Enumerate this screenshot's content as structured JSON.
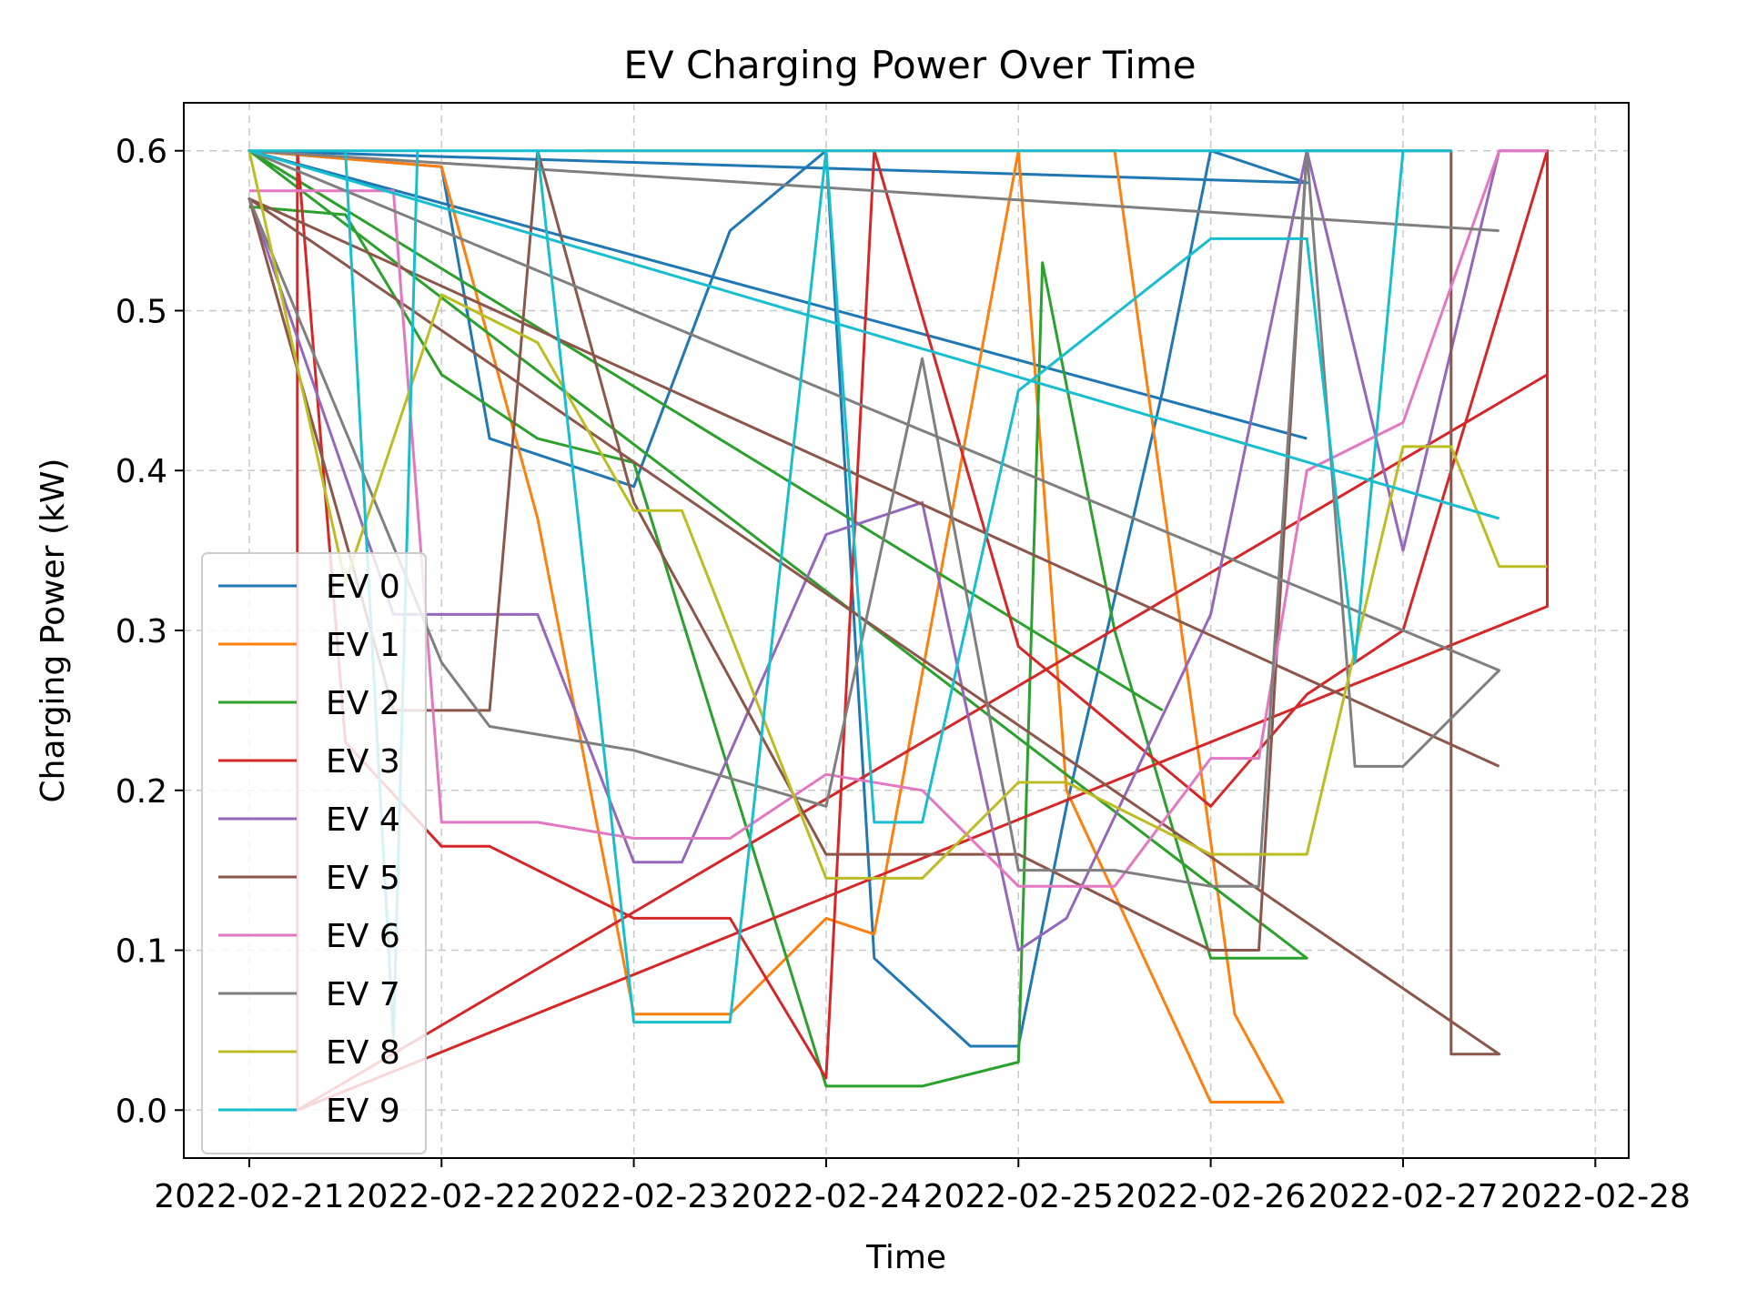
{
  "chart_data": {
    "type": "line",
    "title": "EV Charging Power Over Time",
    "xlabel": "Time",
    "ylabel": "Charging Power (kW)",
    "x_axis": "date",
    "xlim": [
      "2022-02-20T15:50",
      "2022-02-28T04:10"
    ],
    "ylim": [
      -0.03,
      0.63
    ],
    "x_ticks": [
      "2022-02-21T00:00",
      "2022-02-22T00:00",
      "2022-02-23T00:00",
      "2022-02-24T00:00",
      "2022-02-25T00:00",
      "2022-02-26T00:00",
      "2022-02-27T00:00",
      "2022-02-28T00:00"
    ],
    "x_tick_labels": [
      "2022-02-21",
      "2022-02-22",
      "2022-02-23",
      "2022-02-24",
      "2022-02-25",
      "2022-02-26",
      "2022-02-27",
      "2022-02-28"
    ],
    "y_ticks": [
      0.0,
      0.1,
      0.2,
      0.3,
      0.4,
      0.5,
      0.6
    ],
    "y_tick_labels": [
      "0.0",
      "0.1",
      "0.2",
      "0.3",
      "0.4",
      "0.5",
      "0.6"
    ],
    "grid": true,
    "legend_position": "lower-left",
    "series": [
      {
        "name": "EV 0",
        "color": "#1f77b4",
        "points": [
          [
            "2022-02-21T00:00",
            0.6
          ],
          [
            "2022-02-22T00:00",
            0.59
          ],
          [
            "2022-02-22T06:00",
            0.42
          ],
          [
            "2022-02-22T12:00",
            0.41
          ],
          [
            "2022-02-23T00:00",
            0.39
          ],
          [
            "2022-02-23T12:00",
            0.55
          ],
          [
            "2022-02-24T00:00",
            0.6
          ],
          [
            "2022-02-24T06:00",
            0.095
          ],
          [
            "2022-02-24T18:00",
            0.04
          ],
          [
            "2022-02-25T00:00",
            0.04
          ],
          [
            "2022-02-25T06:00",
            0.19
          ],
          [
            "2022-02-25T18:00",
            0.45
          ],
          [
            "2022-02-26T00:00",
            0.6
          ],
          [
            "2022-02-26T12:00",
            0.58
          ],
          [
            "2022-02-21T00:00",
            0.6
          ],
          [
            "2022-02-26T12:00",
            0.42
          ]
        ]
      },
      {
        "name": "EV 1",
        "color": "#ff7f0e",
        "points": [
          [
            "2022-02-21T00:00",
            0.6
          ],
          [
            "2022-02-22T00:00",
            0.59
          ],
          [
            "2022-02-22T12:00",
            0.37
          ],
          [
            "2022-02-23T00:00",
            0.06
          ],
          [
            "2022-02-23T12:00",
            0.06
          ],
          [
            "2022-02-24T00:00",
            0.12
          ],
          [
            "2022-02-24T06:00",
            0.11
          ],
          [
            "2022-02-25T00:00",
            0.6
          ],
          [
            "2022-02-25T06:00",
            0.2
          ],
          [
            "2022-02-26T00:00",
            0.005
          ],
          [
            "2022-02-26T09:00",
            0.005
          ],
          [
            "2022-02-26T03:00",
            0.06
          ],
          [
            "2022-02-25T12:00",
            0.6
          ],
          [
            "2022-02-22T18:00",
            0.6
          ]
        ]
      },
      {
        "name": "EV 2",
        "color": "#2ca02c",
        "points": [
          [
            "2022-02-21T00:00",
            0.565
          ],
          [
            "2022-02-21T12:00",
            0.56
          ],
          [
            "2022-02-22T00:00",
            0.46
          ],
          [
            "2022-02-22T12:00",
            0.42
          ],
          [
            "2022-02-23T00:00",
            0.405
          ],
          [
            "2022-02-24T00:00",
            0.015
          ],
          [
            "2022-02-24T12:00",
            0.015
          ],
          [
            "2022-02-25T00:00",
            0.03
          ],
          [
            "2022-02-25T03:00",
            0.53
          ],
          [
            "2022-02-25T12:00",
            0.3
          ],
          [
            "2022-02-26T00:00",
            0.095
          ],
          [
            "2022-02-26T12:00",
            0.095
          ],
          [
            "2022-02-21T00:00",
            0.6
          ],
          [
            "2022-02-25T18:00",
            0.25
          ]
        ]
      },
      {
        "name": "EV 3",
        "color": "#d62728",
        "points": [
          [
            "2022-02-21T06:00",
            0.0
          ],
          [
            "2022-02-21T06:00",
            0.6
          ],
          [
            "2022-02-21T12:00",
            0.23
          ],
          [
            "2022-02-22T00:00",
            0.165
          ],
          [
            "2022-02-22T06:00",
            0.165
          ],
          [
            "2022-02-23T00:00",
            0.12
          ],
          [
            "2022-02-23T12:00",
            0.12
          ],
          [
            "2022-02-24T00:00",
            0.02
          ],
          [
            "2022-02-24T06:00",
            0.6
          ],
          [
            "2022-02-25T00:00",
            0.29
          ],
          [
            "2022-02-26T00:00",
            0.19
          ],
          [
            "2022-02-26T12:00",
            0.26
          ],
          [
            "2022-02-27T00:00",
            0.3
          ],
          [
            "2022-02-27T18:00",
            0.6
          ],
          [
            "2022-02-27T18:00",
            0.315
          ],
          [
            "2022-02-21T06:00",
            0.0
          ],
          [
            "2022-02-27T18:00",
            0.46
          ]
        ]
      },
      {
        "name": "EV 4",
        "color": "#9467bd",
        "points": [
          [
            "2022-02-21T00:00",
            0.57
          ],
          [
            "2022-02-21T18:00",
            0.31
          ],
          [
            "2022-02-22T12:00",
            0.31
          ],
          [
            "2022-02-23T00:00",
            0.155
          ],
          [
            "2022-02-23T06:00",
            0.155
          ],
          [
            "2022-02-24T00:00",
            0.36
          ],
          [
            "2022-02-24T12:00",
            0.38
          ],
          [
            "2022-02-25T00:00",
            0.1
          ],
          [
            "2022-02-25T06:00",
            0.12
          ],
          [
            "2022-02-26T00:00",
            0.31
          ],
          [
            "2022-02-26T12:00",
            0.6
          ],
          [
            "2022-02-27T00:00",
            0.35
          ],
          [
            "2022-02-27T12:00",
            0.6
          ],
          [
            "2022-02-27T18:00",
            0.6
          ]
        ]
      },
      {
        "name": "EV 5",
        "color": "#8c564b",
        "points": [
          [
            "2022-02-21T00:00",
            0.57
          ],
          [
            "2022-02-21T18:00",
            0.25
          ],
          [
            "2022-02-22T06:00",
            0.25
          ],
          [
            "2022-02-22T12:00",
            0.6
          ],
          [
            "2022-02-23T00:00",
            0.38
          ],
          [
            "2022-02-24T00:00",
            0.16
          ],
          [
            "2022-02-25T00:00",
            0.16
          ],
          [
            "2022-02-26T00:00",
            0.1
          ],
          [
            "2022-02-26T06:00",
            0.1
          ],
          [
            "2022-02-26T12:00",
            0.6
          ],
          [
            "2022-02-27T06:00",
            0.6
          ],
          [
            "2022-02-27T06:00",
            0.035
          ],
          [
            "2022-02-27T12:00",
            0.035
          ],
          [
            "2022-02-21T00:00",
            0.57
          ],
          [
            "2022-02-27T12:00",
            0.215
          ]
        ]
      },
      {
        "name": "EV 6",
        "color": "#e377c2",
        "points": [
          [
            "2022-02-21T00:00",
            0.575
          ],
          [
            "2022-02-21T18:00",
            0.575
          ],
          [
            "2022-02-22T00:00",
            0.18
          ],
          [
            "2022-02-22T12:00",
            0.18
          ],
          [
            "2022-02-23T00:00",
            0.17
          ],
          [
            "2022-02-23T12:00",
            0.17
          ],
          [
            "2022-02-24T00:00",
            0.21
          ],
          [
            "2022-02-24T12:00",
            0.2
          ],
          [
            "2022-02-25T00:00",
            0.14
          ],
          [
            "2022-02-25T12:00",
            0.14
          ],
          [
            "2022-02-26T00:00",
            0.22
          ],
          [
            "2022-02-26T06:00",
            0.22
          ],
          [
            "2022-02-26T12:00",
            0.4
          ],
          [
            "2022-02-27T00:00",
            0.43
          ],
          [
            "2022-02-27T12:00",
            0.6
          ],
          [
            "2022-02-27T18:00",
            0.6
          ]
        ]
      },
      {
        "name": "EV 7",
        "color": "#7f7f7f",
        "points": [
          [
            "2022-02-21T00:00",
            0.57
          ],
          [
            "2022-02-22T00:00",
            0.28
          ],
          [
            "2022-02-22T06:00",
            0.24
          ],
          [
            "2022-02-23T00:00",
            0.225
          ],
          [
            "2022-02-24T00:00",
            0.19
          ],
          [
            "2022-02-24T12:00",
            0.47
          ],
          [
            "2022-02-25T00:00",
            0.15
          ],
          [
            "2022-02-25T12:00",
            0.15
          ],
          [
            "2022-02-26T00:00",
            0.14
          ],
          [
            "2022-02-26T06:00",
            0.14
          ],
          [
            "2022-02-26T12:00",
            0.6
          ],
          [
            "2022-02-26T18:00",
            0.215
          ],
          [
            "2022-02-27T00:00",
            0.215
          ],
          [
            "2022-02-27T12:00",
            0.275
          ],
          [
            "2022-02-21T00:00",
            0.6
          ],
          [
            "2022-02-27T12:00",
            0.55
          ]
        ]
      },
      {
        "name": "EV 8",
        "color": "#bcbd22",
        "points": [
          [
            "2022-02-21T00:00",
            0.6
          ],
          [
            "2022-02-21T12:00",
            0.33
          ],
          [
            "2022-02-22T00:00",
            0.51
          ],
          [
            "2022-02-22T12:00",
            0.48
          ],
          [
            "2022-02-23T00:00",
            0.375
          ],
          [
            "2022-02-23T06:00",
            0.375
          ],
          [
            "2022-02-24T00:00",
            0.145
          ],
          [
            "2022-02-24T12:00",
            0.145
          ],
          [
            "2022-02-25T00:00",
            0.205
          ],
          [
            "2022-02-25T06:00",
            0.205
          ],
          [
            "2022-02-26T00:00",
            0.16
          ],
          [
            "2022-02-26T12:00",
            0.16
          ],
          [
            "2022-02-27T00:00",
            0.415
          ],
          [
            "2022-02-27T06:00",
            0.415
          ],
          [
            "2022-02-27T12:00",
            0.34
          ],
          [
            "2022-02-27T18:00",
            0.34
          ]
        ]
      },
      {
        "name": "EV 9",
        "color": "#17becf",
        "points": [
          [
            "2022-02-21T00:00",
            0.6
          ],
          [
            "2022-02-21T12:00",
            0.6
          ],
          [
            "2022-02-21T18:00",
            0.045
          ],
          [
            "2022-02-21T21:00",
            0.6
          ],
          [
            "2022-02-22T12:00",
            0.6
          ],
          [
            "2022-02-23T00:00",
            0.055
          ],
          [
            "2022-02-23T12:00",
            0.055
          ],
          [
            "2022-02-24T00:00",
            0.6
          ],
          [
            "2022-02-24T06:00",
            0.18
          ],
          [
            "2022-02-24T12:00",
            0.18
          ],
          [
            "2022-02-25T00:00",
            0.45
          ],
          [
            "2022-02-26T00:00",
            0.545
          ],
          [
            "2022-02-26T12:00",
            0.545
          ],
          [
            "2022-02-26T18:00",
            0.28
          ],
          [
            "2022-02-27T00:00",
            0.6
          ],
          [
            "2022-02-27T06:00",
            0.6
          ],
          [
            "2022-02-21T00:00",
            0.6
          ],
          [
            "2022-02-27T12:00",
            0.37
          ]
        ]
      }
    ]
  }
}
